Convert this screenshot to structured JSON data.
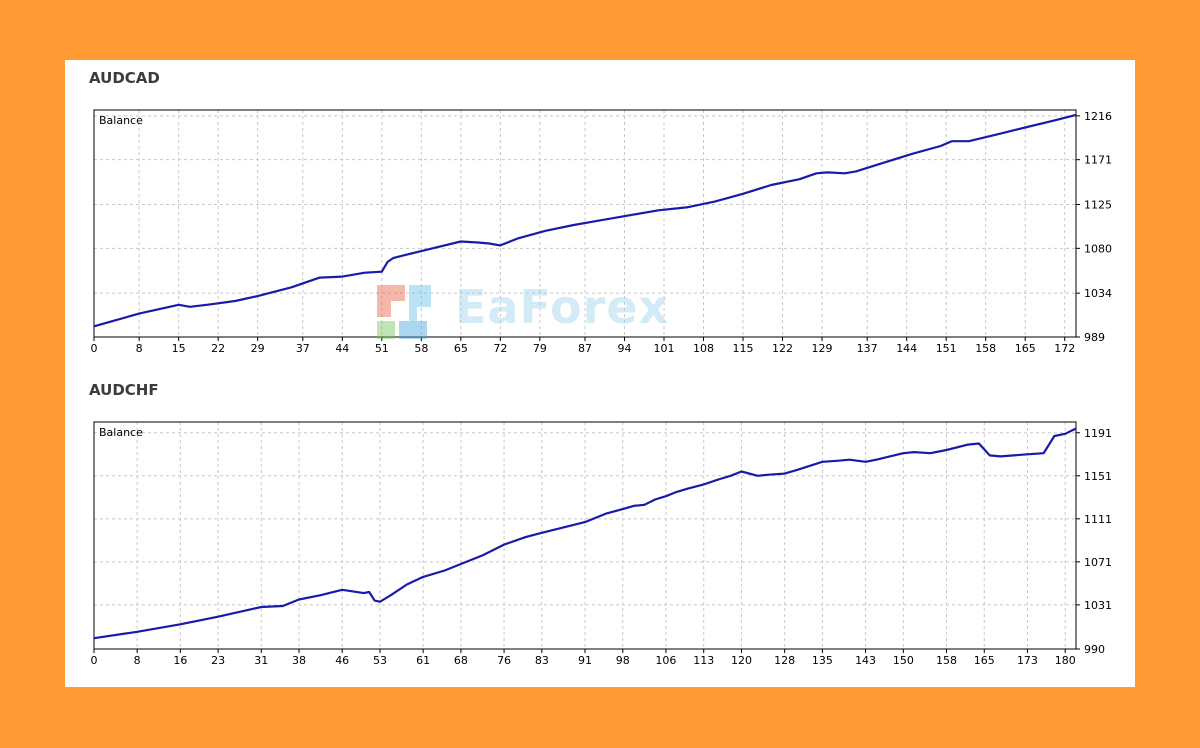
{
  "watermark": {
    "text": "EaForex"
  },
  "colors": {
    "background": "#FF9A35",
    "panel": "#FFFFFF",
    "line": "#1a1aa8",
    "grid": "#c8c8c8"
  },
  "chart_data": [
    {
      "type": "line",
      "title": "AUDCAD",
      "legend_label": "Balance",
      "legend_position": "top-left",
      "grid": true,
      "xlim": [
        0,
        174
      ],
      "ylim": [
        989,
        1222
      ],
      "x_ticks": [
        0,
        8,
        15,
        22,
        29,
        37,
        44,
        51,
        58,
        65,
        72,
        79,
        87,
        94,
        101,
        108,
        115,
        122,
        129,
        137,
        144,
        151,
        158,
        165,
        172
      ],
      "y_ticks": [
        989,
        1034,
        1080,
        1125,
        1171,
        1216
      ],
      "series": [
        {
          "x": [
            0,
            8,
            15,
            17,
            20,
            25,
            29,
            35,
            40,
            44,
            48,
            51,
            52,
            53,
            55,
            60,
            65,
            68,
            70,
            72,
            75,
            80,
            85,
            90,
            95,
            100,
            105,
            110,
            115,
            120,
            125,
            128,
            130,
            133,
            135,
            140,
            145,
            150,
            152,
            155,
            160,
            165,
            170,
            172,
            174
          ],
          "y": [
            1000,
            1013,
            1022,
            1020,
            1022,
            1026,
            1031,
            1040,
            1050,
            1051,
            1055,
            1056,
            1066,
            1070,
            1073,
            1080,
            1087,
            1086,
            1085,
            1083,
            1090,
            1098,
            1104,
            1109,
            1114,
            1119,
            1122,
            1128,
            1136,
            1145,
            1151,
            1157,
            1158,
            1157,
            1159,
            1168,
            1177,
            1185,
            1190,
            1190,
            1197,
            1204,
            1211,
            1214,
            1217
          ]
        }
      ]
    },
    {
      "type": "line",
      "title": "AUDCHF",
      "legend_label": "Balance",
      "legend_position": "top-left",
      "grid": true,
      "xlim": [
        0,
        182
      ],
      "ylim": [
        990,
        1201
      ],
      "x_ticks": [
        0,
        8,
        16,
        23,
        31,
        38,
        46,
        53,
        61,
        68,
        76,
        83,
        91,
        98,
        106,
        113,
        120,
        128,
        135,
        143,
        150,
        158,
        165,
        173,
        180
      ],
      "y_ticks": [
        990,
        1031,
        1071,
        1111,
        1151,
        1191
      ],
      "series": [
        {
          "x": [
            0,
            8,
            16,
            23,
            31,
            35,
            38,
            42,
            46,
            50,
            51,
            52,
            53,
            55,
            58,
            61,
            65,
            68,
            72,
            76,
            80,
            83,
            87,
            91,
            95,
            98,
            100,
            102,
            104,
            106,
            108,
            110,
            113,
            116,
            118,
            120,
            123,
            125,
            128,
            130,
            135,
            138,
            140,
            143,
            145,
            150,
            152,
            155,
            158,
            162,
            164,
            166,
            168,
            173,
            176,
            178,
            180,
            182
          ],
          "y": [
            1000,
            1006,
            1013,
            1020,
            1029,
            1030,
            1036,
            1040,
            1045,
            1042,
            1043,
            1035,
            1034,
            1040,
            1050,
            1057,
            1063,
            1069,
            1077,
            1087,
            1094,
            1098,
            1103,
            1108,
            1116,
            1120,
            1123,
            1124,
            1129,
            1132,
            1136,
            1139,
            1143,
            1148,
            1151,
            1155,
            1151,
            1152,
            1153,
            1156,
            1164,
            1165,
            1166,
            1164,
            1166,
            1172,
            1173,
            1172,
            1175,
            1180,
            1181,
            1170,
            1169,
            1171,
            1172,
            1188,
            1190,
            1195
          ]
        }
      ]
    }
  ]
}
